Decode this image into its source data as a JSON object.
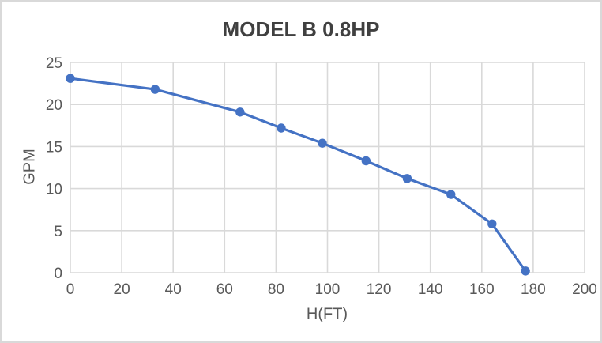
{
  "chart_data": {
    "type": "line",
    "title": "MODEL B 0.8HP",
    "xlabel": "H(FT)",
    "ylabel": "GPM",
    "xlim": [
      0,
      200
    ],
    "ylim": [
      0,
      25
    ],
    "xticks": [
      0,
      20,
      40,
      60,
      80,
      100,
      120,
      140,
      160,
      180,
      200
    ],
    "yticks": [
      0,
      5,
      10,
      15,
      20,
      25
    ],
    "grid": true,
    "legend": "none",
    "series": [
      {
        "name": "MODEL B 0.8HP",
        "marker": "circle",
        "points": [
          [
            0,
            23.1
          ],
          [
            33,
            21.8
          ],
          [
            66,
            19.1
          ],
          [
            82,
            17.2
          ],
          [
            98,
            15.4
          ],
          [
            115,
            13.3
          ],
          [
            131,
            11.2
          ],
          [
            148,
            9.3
          ],
          [
            164,
            5.8
          ],
          [
            177,
            0.2
          ]
        ]
      }
    ],
    "colors": {
      "series_line": "#4472C4",
      "marker_fill": "#4472C4",
      "gridline": "#d9d9d9",
      "tick_label": "#595959",
      "axis_title": "#595959",
      "title": "#404040",
      "background": "#ffffff",
      "frame_border": "#d9d9d9"
    }
  }
}
